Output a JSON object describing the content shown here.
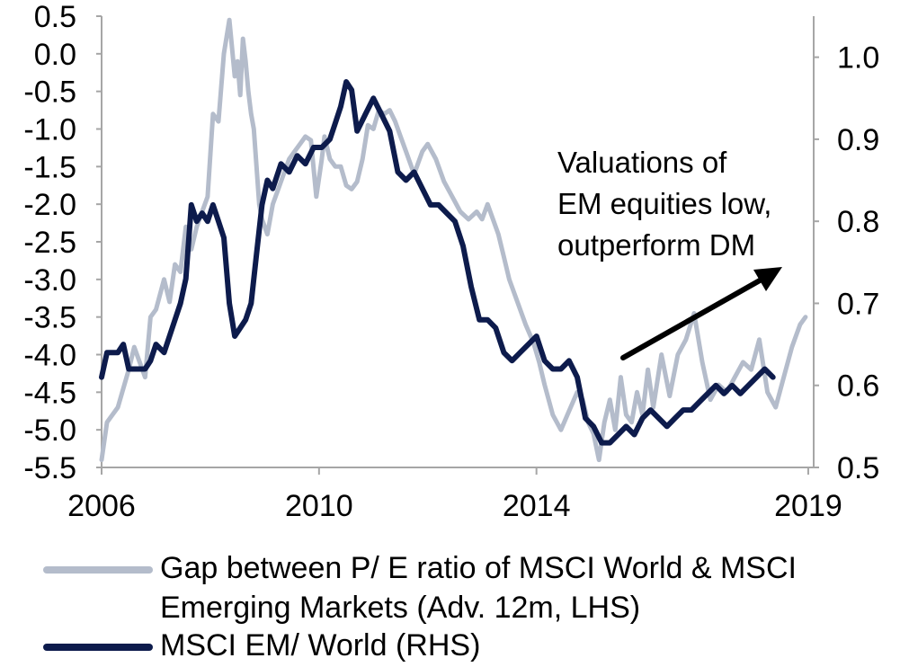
{
  "chart_data": {
    "type": "line",
    "title": "",
    "annotation": {
      "lines": [
        "Valuations of",
        "EM equities low,",
        "outperform DM"
      ]
    },
    "x_axis": {
      "ticks": [
        "2006",
        "2010",
        "2014",
        "2019"
      ],
      "range": [
        2006.0,
        2019.1
      ]
    },
    "y_left": {
      "ticks": [
        "0.5",
        "0.0",
        "-0.5",
        "-1.0",
        "-1.5",
        "-2.0",
        "-2.5",
        "-3.0",
        "-3.5",
        "-4.0",
        "-4.5",
        "-5.0",
        "-5.5"
      ],
      "range": [
        -5.5,
        0.5
      ]
    },
    "y_right": {
      "ticks": [
        "1.0",
        "0.9",
        "0.8",
        "0.7",
        "0.6",
        "0.5"
      ],
      "range": [
        0.5,
        1.05
      ]
    },
    "grid": false,
    "legend_placement": "bottom",
    "series": [
      {
        "name": "Gap between P/ E ratio of MSCI World & MSCI Emerging Markets (Adv. 12m, LHS)",
        "axis": "left",
        "color": "#b4bccb",
        "x": [
          2006.0,
          2006.1,
          2006.3,
          2006.5,
          2006.6,
          2006.8,
          2006.9,
          2007.0,
          2007.15,
          2007.25,
          2007.35,
          2007.45,
          2007.55,
          2007.65,
          2007.75,
          2007.85,
          2007.95,
          2008.05,
          2008.15,
          2008.25,
          2008.35,
          2008.45,
          2008.5,
          2008.55,
          2008.6,
          2008.65,
          2008.7,
          2008.75,
          2008.8,
          2008.85,
          2008.9,
          2008.95,
          2009.05,
          2009.15,
          2009.25,
          2009.35,
          2009.45,
          2009.55,
          2009.65,
          2009.75,
          2009.85,
          2009.95,
          2010.05,
          2010.1,
          2010.2,
          2010.3,
          2010.4,
          2010.5,
          2010.6,
          2010.7,
          2010.8,
          2010.9,
          2011.0,
          2011.1,
          2011.2,
          2011.3,
          2011.4,
          2011.5,
          2011.6,
          2011.75,
          2011.9,
          2012.0,
          2012.15,
          2012.3,
          2012.45,
          2012.6,
          2012.75,
          2012.9,
          2013.0,
          2013.1,
          2013.2,
          2013.3,
          2013.4,
          2013.5,
          2013.65,
          2013.8,
          2013.95,
          2014.05,
          2014.15,
          2014.3,
          2014.45,
          2014.6,
          2014.75,
          2014.85,
          2014.95,
          2015.05,
          2015.15,
          2015.25,
          2015.35,
          2015.45,
          2015.55,
          2015.65,
          2015.75,
          2015.85,
          2015.95,
          2016.05,
          2016.15,
          2016.3,
          2016.45,
          2016.6,
          2016.75,
          2016.9,
          2017.05,
          2017.2,
          2017.35,
          2017.5,
          2017.65,
          2017.8,
          2017.95,
          2018.1,
          2018.25,
          2018.4,
          2018.55,
          2018.7,
          2018.85,
          2018.95
        ],
        "values": [
          -5.4,
          -4.9,
          -4.7,
          -4.2,
          -3.9,
          -4.3,
          -3.5,
          -3.4,
          -3.0,
          -3.3,
          -2.8,
          -2.9,
          -2.3,
          -2.6,
          -2.3,
          -2.1,
          -1.9,
          -0.8,
          -0.9,
          0.0,
          0.45,
          -0.3,
          -0.1,
          -0.55,
          0.2,
          -0.1,
          -0.5,
          -0.8,
          -1.0,
          -1.5,
          -2.0,
          -2.2,
          -2.4,
          -2.0,
          -1.8,
          -1.6,
          -1.4,
          -1.3,
          -1.2,
          -1.1,
          -1.15,
          -1.9,
          -1.4,
          -1.1,
          -1.4,
          -1.5,
          -1.5,
          -1.75,
          -1.8,
          -1.7,
          -1.4,
          -0.95,
          -1.0,
          -0.75,
          -0.8,
          -0.75,
          -0.9,
          -1.1,
          -1.3,
          -1.6,
          -1.3,
          -1.2,
          -1.4,
          -1.7,
          -1.9,
          -2.1,
          -2.2,
          -2.1,
          -2.2,
          -2.0,
          -2.2,
          -2.4,
          -2.7,
          -3.0,
          -3.3,
          -3.6,
          -3.85,
          -4.1,
          -4.4,
          -4.8,
          -5.0,
          -4.75,
          -4.5,
          -4.6,
          -4.9,
          -5.05,
          -5.4,
          -4.9,
          -4.6,
          -5.0,
          -4.3,
          -4.8,
          -4.9,
          -4.5,
          -4.8,
          -4.2,
          -4.7,
          -4.0,
          -4.55,
          -4.0,
          -3.8,
          -3.45,
          -4.1,
          -4.6,
          -4.4,
          -4.5,
          -4.3,
          -4.1,
          -4.2,
          -3.8,
          -4.5,
          -4.7,
          -4.3,
          -3.9,
          -3.6,
          -3.5
        ]
      },
      {
        "name": "MSCI EM/ World (RHS)",
        "axis": "right",
        "color": "#0d1b4c",
        "x": [
          2006.0,
          2006.1,
          2006.3,
          2006.4,
          2006.5,
          2006.6,
          2006.8,
          2006.9,
          2007.0,
          2007.15,
          2007.3,
          2007.45,
          2007.55,
          2007.65,
          2007.75,
          2007.85,
          2007.95,
          2008.05,
          2008.15,
          2008.25,
          2008.35,
          2008.45,
          2008.55,
          2008.65,
          2008.75,
          2008.85,
          2008.95,
          2009.05,
          2009.15,
          2009.3,
          2009.45,
          2009.6,
          2009.75,
          2009.9,
          2010.05,
          2010.2,
          2010.3,
          2010.4,
          2010.5,
          2010.6,
          2010.7,
          2010.85,
          2011.0,
          2011.15,
          2011.3,
          2011.45,
          2011.6,
          2011.75,
          2011.9,
          2012.05,
          2012.2,
          2012.35,
          2012.5,
          2012.65,
          2012.8,
          2012.95,
          2013.1,
          2013.25,
          2013.4,
          2013.55,
          2013.7,
          2013.85,
          2014.0,
          2014.15,
          2014.3,
          2014.45,
          2014.6,
          2014.75,
          2014.9,
          2015.05,
          2015.2,
          2015.35,
          2015.5,
          2015.65,
          2015.8,
          2015.95,
          2016.1,
          2016.25,
          2016.4,
          2016.55,
          2016.7,
          2016.85,
          2017.0,
          2017.15,
          2017.3,
          2017.45,
          2017.6,
          2017.75,
          2017.9,
          2018.05,
          2018.2,
          2018.35
        ],
        "values": [
          0.61,
          0.64,
          0.64,
          0.65,
          0.62,
          0.62,
          0.62,
          0.63,
          0.65,
          0.64,
          0.67,
          0.7,
          0.73,
          0.82,
          0.8,
          0.81,
          0.8,
          0.82,
          0.8,
          0.78,
          0.7,
          0.66,
          0.67,
          0.68,
          0.7,
          0.76,
          0.82,
          0.85,
          0.84,
          0.87,
          0.86,
          0.88,
          0.87,
          0.89,
          0.89,
          0.9,
          0.92,
          0.94,
          0.97,
          0.96,
          0.91,
          0.93,
          0.95,
          0.93,
          0.91,
          0.86,
          0.85,
          0.86,
          0.84,
          0.82,
          0.82,
          0.81,
          0.8,
          0.77,
          0.72,
          0.68,
          0.68,
          0.67,
          0.64,
          0.63,
          0.64,
          0.65,
          0.66,
          0.63,
          0.62,
          0.62,
          0.63,
          0.61,
          0.56,
          0.55,
          0.53,
          0.53,
          0.54,
          0.55,
          0.54,
          0.56,
          0.57,
          0.56,
          0.55,
          0.56,
          0.57,
          0.57,
          0.58,
          0.59,
          0.6,
          0.59,
          0.6,
          0.59,
          0.6,
          0.61,
          0.62,
          0.61
        ]
      }
    ]
  }
}
